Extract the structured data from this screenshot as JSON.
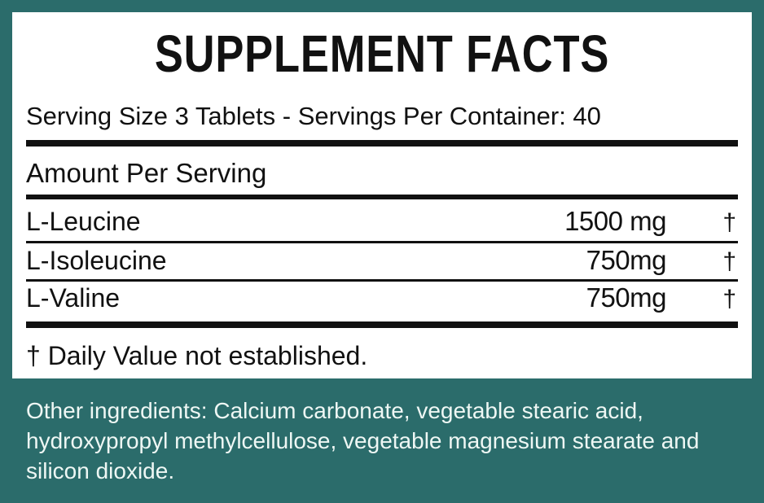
{
  "label": {
    "title": "SUPPLEMENT FACTS",
    "serving": "Serving Size 3 Tablets - Servings Per Container: 40",
    "amount_header": "Amount Per Serving",
    "rows": [
      {
        "name": "L-Leucine",
        "amount": "1500 mg",
        "dv": "†"
      },
      {
        "name": "L-Isoleucine",
        "amount": "750mg",
        "dv": "†"
      },
      {
        "name": "L-Valine",
        "amount": "750mg",
        "dv": "†"
      }
    ],
    "footnote": "† Daily Value not established."
  },
  "other_ingredients": "Other ingredients: Calcium carbonate, vegetable stearic acid, hydroxypropyl methylcellulose, vegetable magnesium stearate and silicon dioxide.",
  "colors": {
    "background": "#2b6c6b",
    "panel": "#ffffff",
    "text": "#111111",
    "other_text": "#eef7f4"
  }
}
